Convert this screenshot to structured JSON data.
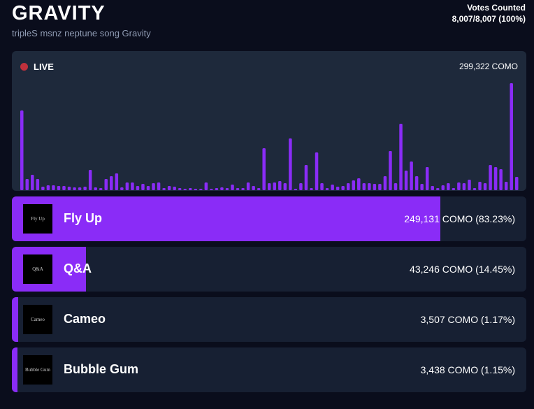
{
  "header": {
    "title": "GRAVITY",
    "subtitle": "tripleS msnz neptune song Gravity",
    "votes_label": "Votes Counted",
    "votes_value": "8,007/8,007 (100%)"
  },
  "live": {
    "label": "LIVE",
    "total": "299,322 COMO",
    "bars": [
      114,
      16,
      22,
      16,
      5,
      7,
      7,
      6,
      6,
      5,
      4,
      4,
      5,
      29,
      4,
      3,
      16,
      20,
      24,
      4,
      11,
      11,
      6,
      9,
      6,
      10,
      11,
      3,
      6,
      5,
      3,
      2,
      3,
      2,
      2,
      11,
      2,
      3,
      4,
      3,
      8,
      3,
      3,
      11,
      6,
      3,
      60,
      10,
      11,
      13,
      10,
      74,
      2,
      10,
      36,
      3,
      54,
      10,
      3,
      8,
      5,
      6,
      10,
      14,
      17,
      10,
      10,
      9,
      9,
      20,
      56,
      10,
      95,
      28,
      41,
      20,
      9,
      33,
      6,
      3,
      7,
      10,
      3,
      11,
      10,
      15,
      3,
      12,
      10,
      36,
      33,
      30,
      12,
      153,
      19
    ],
    "color": "#8a2cf7"
  },
  "options": [
    {
      "thumb": "Fly Up",
      "name": "Fly Up",
      "result": "249,131 COMO (83.23%)",
      "percent": 83.23
    },
    {
      "thumb": "Q&A",
      "name": "Q&A",
      "result": "43,246 COMO (14.45%)",
      "percent": 14.45
    },
    {
      "thumb": "Cameo",
      "name": "Cameo",
      "result": "3,507 COMO (1.17%)",
      "percent": 1.17
    },
    {
      "thumb": "Bubble Gum",
      "name": "Bubble Gum",
      "result": "3,438 COMO (1.15%)",
      "percent": 1.15
    }
  ]
}
